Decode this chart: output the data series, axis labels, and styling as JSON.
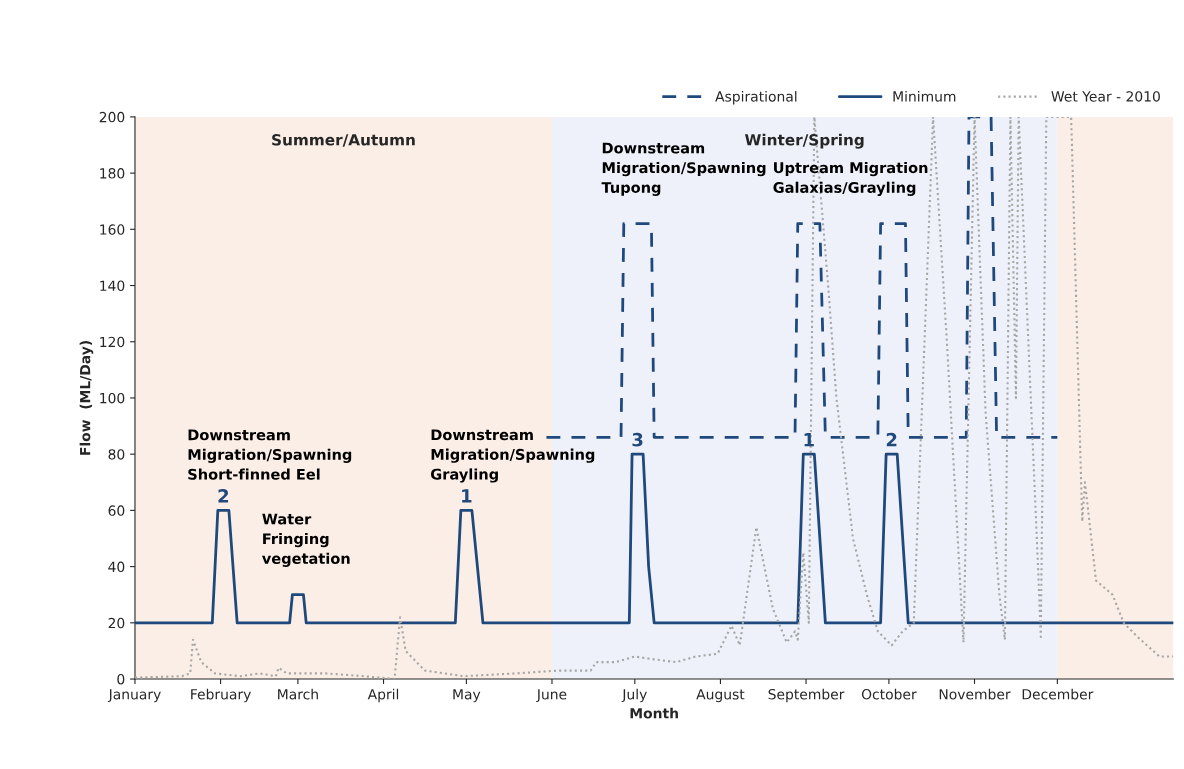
{
  "chart_data": {
    "type": "line",
    "xlabel": "Month",
    "ylabel": "Flow  (ML/Day)",
    "xlim": [
      "2010-01-01",
      "2011-01-12"
    ],
    "ylim": [
      0,
      200
    ],
    "xticks": [
      {
        "value": "2010-01-01",
        "label": "January"
      },
      {
        "value": "2010-02-01",
        "label": "February"
      },
      {
        "value": "2010-03-01",
        "label": "March"
      },
      {
        "value": "2010-04-01",
        "label": "April"
      },
      {
        "value": "2010-05-01",
        "label": "May"
      },
      {
        "value": "2010-06-01",
        "label": "June"
      },
      {
        "value": "2010-07-01",
        "label": "July"
      },
      {
        "value": "2010-08-01",
        "label": "August"
      },
      {
        "value": "2010-09-01",
        "label": "September"
      },
      {
        "value": "2010-10-01",
        "label": "October"
      },
      {
        "value": "2010-11-01",
        "label": "November"
      },
      {
        "value": "2010-12-01",
        "label": "December"
      }
    ],
    "yticks": [
      0,
      20,
      40,
      60,
      80,
      100,
      120,
      140,
      160,
      180,
      200
    ],
    "grid": false,
    "legend": "top right",
    "bands": [
      {
        "axis": "x",
        "from": "2010-01-01",
        "to": "2010-06-01",
        "label": "Summer/Autumn",
        "color": "#fbeee6"
      },
      {
        "axis": "x",
        "from": "2010-06-01",
        "to": "2010-12-01",
        "label": "Winter/Spring",
        "color": "#eef1f9"
      },
      {
        "axis": "x",
        "from": "2010-12-01",
        "to": "2011-01-12",
        "color": "#fbeee6"
      }
    ],
    "series": [
      {
        "name": "Aspirational",
        "color": "#1f497d",
        "line_style": "dashed",
        "x": [
          "2010-05-30",
          "2010-06-26",
          "2010-06-27",
          "2010-07-07",
          "2010-07-08",
          "2010-08-28",
          "2010-08-29",
          "2010-09-06",
          "2010-09-08",
          "2010-09-27",
          "2010-09-28",
          "2010-10-07",
          "2010-10-08",
          "2010-10-29",
          "2010-10-30",
          "2010-11-07",
          "2010-11-09",
          "2010-12-01"
        ],
        "values": [
          86,
          86,
          162,
          162,
          86,
          86,
          162,
          162,
          86,
          86,
          162,
          162,
          86,
          86,
          200,
          200,
          86,
          86
        ]
      },
      {
        "name": "Minimum",
        "color": "#1f497d",
        "line_style": "solid",
        "x": [
          "2010-01-01",
          "2010-01-29",
          "2010-01-31",
          "2010-02-04",
          "2010-02-07",
          "2010-02-26",
          "2010-02-27",
          "2010-03-03",
          "2010-03-04",
          "2010-04-27",
          "2010-04-29",
          "2010-05-03",
          "2010-05-07",
          "2010-06-29",
          "2010-06-30",
          "2010-07-04",
          "2010-07-06",
          "2010-07-08",
          "2010-08-29",
          "2010-08-31",
          "2010-09-04",
          "2010-09-08",
          "2010-09-28",
          "2010-09-30",
          "2010-10-04",
          "2010-10-08",
          "2011-01-12"
        ],
        "values": [
          20,
          20,
          60,
          60,
          20,
          20,
          30,
          30,
          20,
          20,
          60,
          60,
          20,
          20,
          80,
          80,
          40,
          20,
          20,
          80,
          80,
          20,
          20,
          80,
          80,
          20,
          20
        ]
      },
      {
        "name": "Wet Year - 2010",
        "color": "#a6a6a6",
        "line_style": "dotted",
        "x": [
          "2010-01-01",
          "2010-01-18",
          "2010-01-21",
          "2010-01-22",
          "2010-01-25",
          "2010-01-30",
          "2010-02-08",
          "2010-02-15",
          "2010-02-21",
          "2010-02-22",
          "2010-02-25",
          "2010-03-11",
          "2010-03-25",
          "2010-04-05",
          "2010-04-07",
          "2010-04-09",
          "2010-04-16",
          "2010-04-30",
          "2010-05-19",
          "2010-06-03",
          "2010-06-15",
          "2010-06-17",
          "2010-06-24",
          "2010-07-01",
          "2010-07-08",
          "2010-07-16",
          "2010-07-23",
          "2010-07-31",
          "2010-08-05",
          "2010-08-08",
          "2010-08-14",
          "2010-08-20",
          "2010-08-25",
          "2010-08-28",
          "2010-08-29",
          "2010-08-31",
          "2010-09-02",
          "2010-09-04",
          "2010-09-09",
          "2010-09-12",
          "2010-09-18",
          "2010-09-23",
          "2010-09-27",
          "2010-10-02",
          "2010-10-06",
          "2010-10-10",
          "2010-10-17",
          "2010-10-22",
          "2010-10-28",
          "2010-11-01",
          "2010-11-05",
          "2010-11-10",
          "2010-11-12",
          "2010-11-14",
          "2010-11-16",
          "2010-11-17",
          "2010-11-24",
          "2010-11-25",
          "2010-11-27",
          "2010-12-06",
          "2010-12-10",
          "2010-12-11",
          "2010-12-15",
          "2010-12-21",
          "2010-12-25",
          "2010-12-30",
          "2011-01-07",
          "2011-01-12"
        ],
        "values": [
          0.5,
          1,
          2,
          14,
          6,
          2,
          1,
          2,
          1,
          4,
          2,
          2,
          1,
          0,
          22,
          10,
          3,
          1,
          2,
          3,
          3,
          6,
          6,
          8,
          7,
          6,
          8,
          9,
          19,
          12,
          54,
          25,
          13,
          17,
          14,
          45,
          20,
          200,
          140,
          100,
          50,
          30,
          17,
          12,
          17,
          20,
          200,
          120,
          13,
          200,
          95,
          30,
          14,
          200,
          100,
          200,
          40,
          15,
          200,
          200,
          56,
          70,
          35,
          30,
          20,
          15,
          8,
          8
        ]
      }
    ],
    "annotations": [
      {
        "text": "Downstream\nMigration/Spawning\nShort-finned Eel",
        "x": "2010-02-02",
        "y": 60
      },
      {
        "text": "2",
        "x": "2010-02-02",
        "y": 60
      },
      {
        "text": "Water\nFringing\nvegetation",
        "x": "2010-03-01",
        "y": 30
      },
      {
        "text": "Downstream\nMigration/Spawning\nGrayling",
        "x": "2010-05-01",
        "y": 60
      },
      {
        "text": "1",
        "x": "2010-05-01",
        "y": 60
      },
      {
        "text": "Downstream\nMigration/Spawning\nTupong",
        "x": "2010-07-02",
        "y": 162
      },
      {
        "text": "3",
        "x": "2010-07-02",
        "y": 80
      },
      {
        "text": "Uptream Migration\nGalaxias/Grayling",
        "x": "2010-09-02",
        "y": 162
      },
      {
        "text": "1",
        "x": "2010-09-02",
        "y": 80
      },
      {
        "text": "2",
        "x": "2010-10-02",
        "y": 80
      }
    ]
  }
}
